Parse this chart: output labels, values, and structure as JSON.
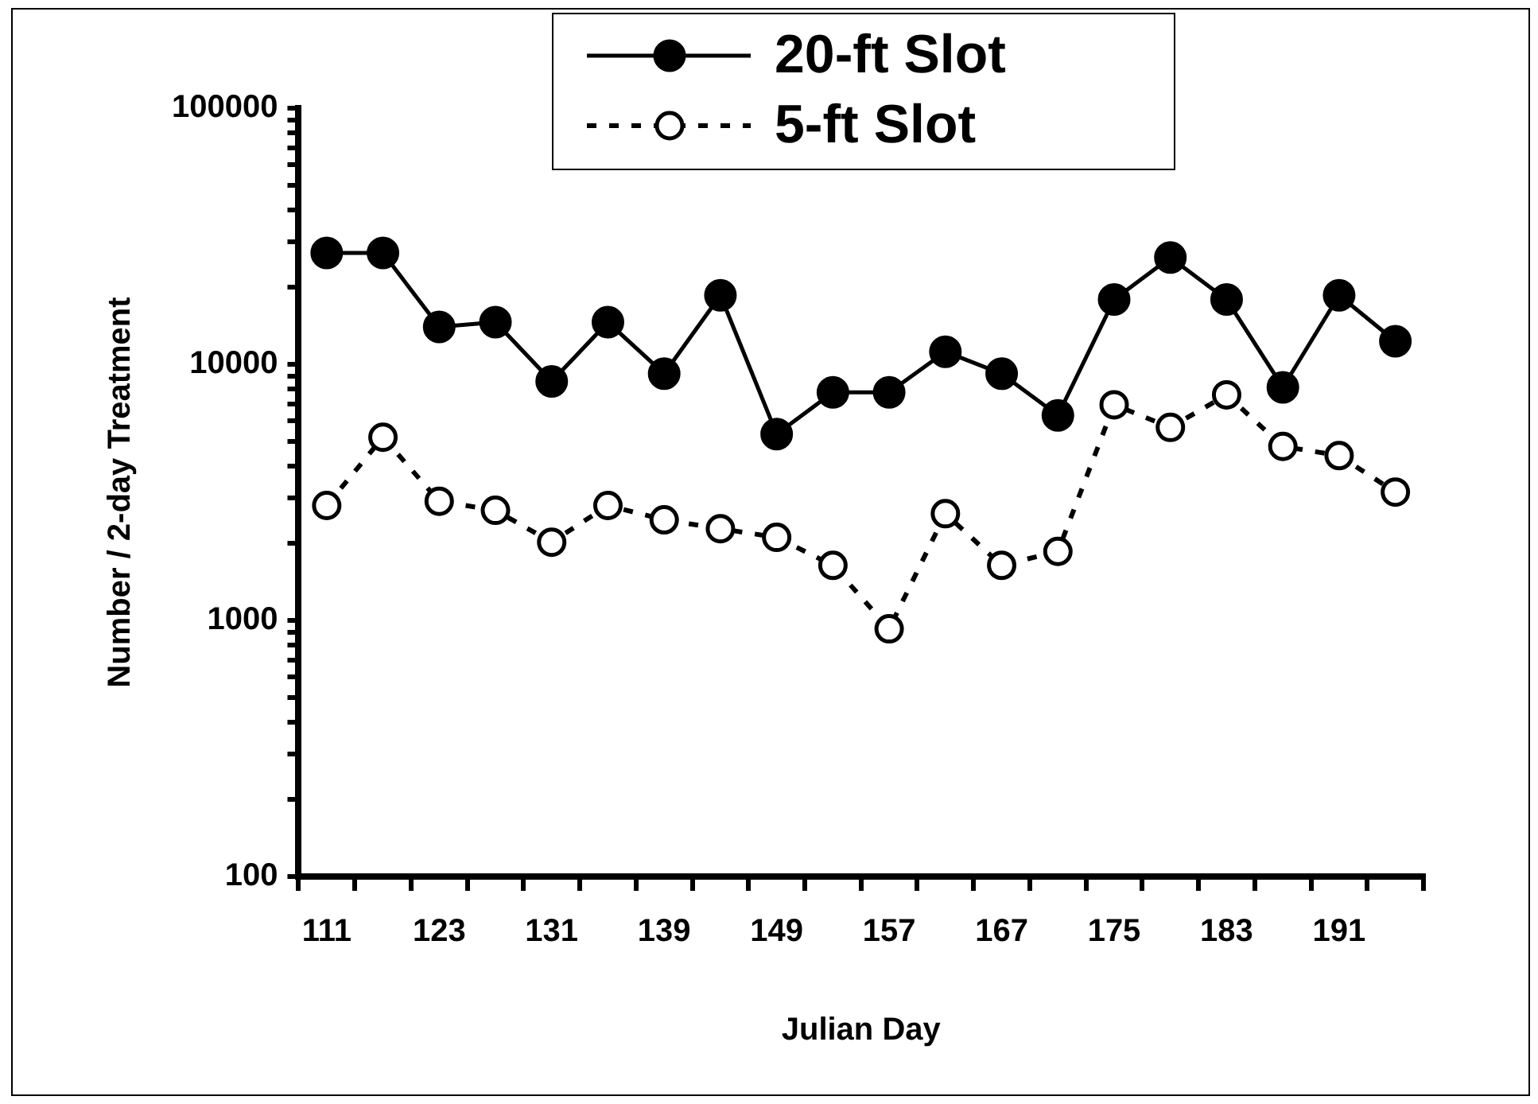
{
  "chart_data": {
    "type": "line",
    "xlabel": "Julian Day",
    "ylabel": "Number / 2-day Treatment",
    "categories": [
      "111",
      null,
      "123",
      null,
      "131",
      null,
      "139",
      null,
      "149",
      null,
      "157",
      null,
      "167",
      null,
      "175",
      null,
      "183",
      null,
      "191",
      null
    ],
    "series": [
      {
        "name": "20-ft Slot",
        "color": "#000000",
        "line_style": "solid",
        "values": [
          27200,
          27200,
          14000,
          14600,
          8570,
          14600,
          9190,
          18600,
          5340,
          7770,
          7770,
          11200,
          9190,
          6320,
          17900,
          26100,
          17900,
          8130,
          18600,
          12300
        ]
      },
      {
        "name": "5-ft Slot",
        "color": "#000000",
        "line_style": "dashed",
        "values": [
          2810,
          5190,
          2920,
          2690,
          2020,
          2810,
          2470,
          2280,
          2110,
          1640,
          927,
          2610,
          1640,
          1860,
          6950,
          5670,
          7600,
          4780,
          4400,
          3170
        ]
      }
    ],
    "log": true,
    "ylim": [
      100,
      100000
    ],
    "yticks": [
      100,
      {
        "value": 200,
        "label": null
      },
      {
        "value": 300,
        "label": null
      },
      {
        "value": 400,
        "label": null
      },
      {
        "value": 500,
        "label": null
      },
      {
        "value": 600,
        "label": null
      },
      {
        "value": 700,
        "label": null
      },
      {
        "value": 800,
        "label": null
      },
      {
        "value": 900,
        "label": null
      },
      1000,
      {
        "value": 2000,
        "label": null
      },
      {
        "value": 3000,
        "label": null
      },
      {
        "value": 4000,
        "label": null
      },
      {
        "value": 5000,
        "label": null
      },
      {
        "value": 6000,
        "label": null
      },
      {
        "value": 7000,
        "label": null
      },
      {
        "value": 8000,
        "label": null
      },
      {
        "value": 9000,
        "label": null
      },
      10000,
      {
        "value": 20000,
        "label": null
      },
      {
        "value": 30000,
        "label": null
      },
      {
        "value": 40000,
        "label": null
      },
      {
        "value": 50000,
        "label": null
      },
      {
        "value": 60000,
        "label": null
      },
      {
        "value": 70000,
        "label": null
      },
      {
        "value": 80000,
        "label": null
      },
      {
        "value": 90000,
        "label": null
      },
      100000
    ],
    "grid": false,
    "legend": "top",
    "marker": "circle"
  }
}
